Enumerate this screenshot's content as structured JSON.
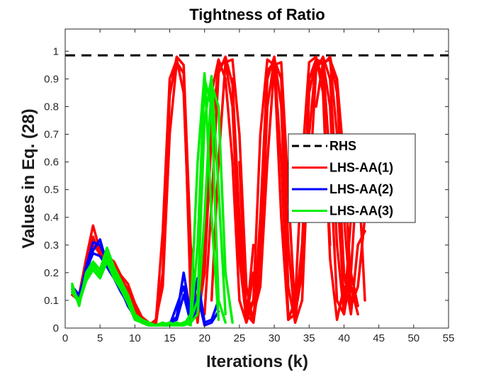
{
  "chart_data": {
    "type": "line",
    "title": "Tightness of Ratio",
    "xlabel": "Iterations (k)",
    "ylabel": "Values in Eq. (28)",
    "xlim": [
      0,
      55
    ],
    "ylim": [
      0,
      1.08
    ],
    "xticks": [
      0,
      5,
      10,
      15,
      20,
      25,
      30,
      35,
      40,
      45,
      50,
      55
    ],
    "xtick_labels": [
      "0",
      "5",
      "10",
      "15",
      "20",
      "25",
      "30",
      "35",
      "40",
      "45",
      "50",
      "55"
    ],
    "yticks": [
      0,
      0.1,
      0.2,
      0.3,
      0.4,
      0.5,
      0.6,
      0.7,
      0.8,
      0.9,
      1
    ],
    "ytick_labels": [
      "0",
      "0.1",
      "0.2",
      "0.3",
      "0.4",
      "0.5",
      "0.6",
      "0.7",
      "0.8",
      "0.9",
      "1"
    ],
    "legend_position": "right-middle",
    "series": [
      {
        "name": "RHS",
        "color": "#000000",
        "style": "dashed",
        "runs": [
          {
            "x": [
              0,
              55
            ],
            "y": [
              0.985,
              0.985
            ]
          }
        ]
      },
      {
        "name": "LHS-AA(1)",
        "color": "#ff0000",
        "style": "solid",
        "runs": [
          {
            "x": [
              1,
              2,
              3,
              4,
              5,
              6,
              7,
              8,
              9,
              10,
              11,
              12,
              13,
              14,
              15,
              16,
              17,
              18,
              19
            ],
            "y": [
              0.13,
              0.12,
              0.25,
              0.37,
              0.28,
              0.26,
              0.24,
              0.19,
              0.16,
              0.09,
              0.04,
              0.02,
              0.01,
              0.2,
              0.84,
              0.98,
              0.95,
              0.3,
              0.03
            ]
          },
          {
            "x": [
              1,
              2,
              3,
              4,
              5,
              6,
              7,
              8,
              9,
              10,
              11,
              12,
              13,
              14,
              15,
              16,
              17,
              18,
              19
            ],
            "y": [
              0.12,
              0.1,
              0.22,
              0.33,
              0.26,
              0.24,
              0.22,
              0.18,
              0.14,
              0.07,
              0.03,
              0.01,
              0.02,
              0.35,
              0.9,
              0.97,
              0.85,
              0.2,
              0.02
            ]
          },
          {
            "x": [
              1,
              2,
              3,
              4,
              5,
              6,
              7,
              8,
              9,
              10,
              11,
              12,
              13,
              14,
              15,
              16,
              17,
              18
            ],
            "y": [
              0.14,
              0.11,
              0.2,
              0.3,
              0.27,
              0.25,
              0.21,
              0.17,
              0.13,
              0.06,
              0.02,
              0.01,
              0.03,
              0.15,
              0.7,
              0.96,
              0.92,
              0.1
            ]
          },
          {
            "x": [
              19,
              20,
              21,
              22,
              23,
              24,
              25,
              26,
              27
            ],
            "y": [
              0.02,
              0.3,
              0.85,
              0.97,
              0.9,
              0.6,
              0.1,
              0.02,
              0.3
            ]
          },
          {
            "x": [
              19,
              20,
              21,
              22,
              23,
              24,
              25,
              26,
              27
            ],
            "y": [
              0.03,
              0.2,
              0.7,
              0.95,
              0.96,
              0.8,
              0.25,
              0.03,
              0.2
            ]
          },
          {
            "x": [
              20,
              21,
              22,
              23,
              24,
              25,
              26,
              27
            ],
            "y": [
              0.05,
              0.45,
              0.92,
              0.98,
              0.88,
              0.4,
              0.05,
              0.1
            ]
          },
          {
            "x": [
              21,
              22,
              23,
              24,
              25,
              26,
              27,
              28,
              29,
              30,
              31,
              32
            ],
            "y": [
              0.1,
              0.6,
              0.96,
              0.97,
              0.7,
              0.15,
              0.02,
              0.4,
              0.93,
              0.96,
              0.6,
              0.05
            ]
          },
          {
            "x": [
              24,
              25,
              26,
              27,
              28,
              29,
              30,
              31,
              32,
              33
            ],
            "y": [
              0.9,
              0.3,
              0.02,
              0.1,
              0.7,
              0.97,
              0.95,
              0.4,
              0.03,
              0.05
            ]
          },
          {
            "x": [
              25,
              26,
              27,
              28,
              29,
              30,
              31,
              32,
              33,
              34
            ],
            "y": [
              0.6,
              0.05,
              0.02,
              0.3,
              0.9,
              0.98,
              0.8,
              0.15,
              0.02,
              0.3
            ]
          },
          {
            "x": [
              26,
              27,
              28,
              29,
              30,
              31,
              32,
              33,
              34
            ],
            "y": [
              0.1,
              0.02,
              0.2,
              0.8,
              0.97,
              0.9,
              0.3,
              0.02,
              0.1
            ]
          },
          {
            "x": [
              27,
              28,
              29,
              30,
              31,
              32,
              33,
              34,
              35,
              36,
              37,
              38
            ],
            "y": [
              0.05,
              0.15,
              0.6,
              0.95,
              0.96,
              0.5,
              0.05,
              0.2,
              0.85,
              0.97,
              0.9,
              0.3
            ]
          },
          {
            "x": [
              32,
              33,
              34,
              35,
              36,
              37,
              38,
              39,
              40
            ],
            "y": [
              0.03,
              0.1,
              0.6,
              0.96,
              0.98,
              0.85,
              0.25,
              0.03,
              0.15
            ]
          },
          {
            "x": [
              33,
              34,
              35,
              36,
              37,
              38,
              39,
              40,
              41
            ],
            "y": [
              0.05,
              0.3,
              0.9,
              0.97,
              0.95,
              0.6,
              0.1,
              0.05,
              0.4
            ]
          },
          {
            "x": [
              34,
              35,
              36,
              37,
              38,
              39,
              40,
              41,
              42
            ],
            "y": [
              0.1,
              0.7,
              0.97,
              0.96,
              0.8,
              0.3,
              0.05,
              0.2,
              0.08
            ]
          },
          {
            "x": [
              35,
              36,
              37,
              38,
              39,
              40,
              41,
              42,
              43
            ],
            "y": [
              0.5,
              0.93,
              0.98,
              0.9,
              0.5,
              0.1,
              0.2,
              0.6,
              0.1
            ]
          },
          {
            "x": [
              36,
              37,
              38,
              39,
              40,
              41,
              42,
              43
            ],
            "y": [
              0.8,
              0.96,
              0.97,
              0.7,
              0.2,
              0.05,
              0.3,
              0.35
            ]
          },
          {
            "x": [
              37,
              38,
              39,
              40,
              41,
              42,
              43
            ],
            "y": [
              0.95,
              0.98,
              0.85,
              0.4,
              0.08,
              0.15,
              0.4
            ]
          },
          {
            "x": [
              38,
              39,
              40,
              41,
              42
            ],
            "y": [
              0.97,
              0.9,
              0.6,
              0.15,
              0.05
            ]
          }
        ]
      },
      {
        "name": "LHS-AA(2)",
        "color": "#0000ff",
        "style": "solid",
        "runs": [
          {
            "x": [
              1,
              2,
              3,
              4,
              5,
              6,
              7,
              8,
              9,
              10,
              11,
              12,
              13,
              14,
              15,
              16,
              17,
              18,
              19,
              20,
              21,
              22
            ],
            "y": [
              0.14,
              0.11,
              0.22,
              0.31,
              0.3,
              0.24,
              0.2,
              0.15,
              0.1,
              0.05,
              0.02,
              0.01,
              0.01,
              0.01,
              0.02,
              0.04,
              0.2,
              0.05,
              0.18,
              0.02,
              0.03,
              0.1
            ]
          },
          {
            "x": [
              1,
              2,
              3,
              4,
              5,
              6,
              7,
              8,
              9,
              10,
              11,
              12,
              13,
              14,
              15,
              16,
              17,
              18,
              19,
              20,
              21,
              22
            ],
            "y": [
              0.13,
              0.1,
              0.2,
              0.28,
              0.32,
              0.23,
              0.19,
              0.14,
              0.08,
              0.04,
              0.02,
              0.01,
              0.01,
              0.01,
              0.01,
              0.08,
              0.15,
              0.03,
              0.12,
              0.01,
              0.02,
              0.06
            ]
          },
          {
            "x": [
              1,
              2,
              3,
              4,
              5,
              6,
              7,
              8,
              9,
              10,
              11,
              12,
              13,
              14,
              15,
              16,
              17,
              18,
              19
            ],
            "y": [
              0.15,
              0.12,
              0.21,
              0.27,
              0.26,
              0.22,
              0.18,
              0.13,
              0.09,
              0.05,
              0.03,
              0.01,
              0.01,
              0.01,
              0.02,
              0.03,
              0.12,
              0.02,
              0.08
            ]
          }
        ]
      },
      {
        "name": "LHS-AA(3)",
        "color": "#00ee00",
        "style": "solid",
        "runs": [
          {
            "x": [
              1,
              2,
              3,
              4,
              5,
              6,
              7,
              8,
              9,
              10,
              11,
              12,
              13,
              14,
              15,
              16,
              17,
              18,
              19,
              20,
              21,
              22,
              23
            ],
            "y": [
              0.16,
              0.08,
              0.2,
              0.24,
              0.21,
              0.29,
              0.22,
              0.17,
              0.12,
              0.05,
              0.03,
              0.02,
              0.01,
              0.01,
              0.02,
              0.01,
              0.02,
              0.01,
              0.3,
              0.9,
              0.8,
              0.1,
              0.02
            ]
          },
          {
            "x": [
              1,
              2,
              3,
              4,
              5,
              6,
              7,
              8,
              9,
              10,
              11,
              12,
              13,
              14,
              15,
              16,
              17,
              18,
              19,
              20,
              21,
              22
            ],
            "y": [
              0.15,
              0.09,
              0.19,
              0.22,
              0.2,
              0.27,
              0.2,
              0.16,
              0.11,
              0.04,
              0.02,
              0.01,
              0.01,
              0.02,
              0.01,
              0.02,
              0.01,
              0.05,
              0.6,
              0.92,
              0.4,
              0.03
            ]
          },
          {
            "x": [
              1,
              2,
              3,
              4,
              5,
              6,
              7,
              8,
              9,
              10,
              11,
              12,
              13,
              14,
              15,
              16,
              17,
              18,
              19,
              20,
              21,
              22,
              23
            ],
            "y": [
              0.14,
              0.1,
              0.18,
              0.23,
              0.19,
              0.25,
              0.19,
              0.15,
              0.1,
              0.04,
              0.02,
              0.01,
              0.01,
              0.01,
              0.01,
              0.01,
              0.02,
              0.03,
              0.1,
              0.75,
              0.91,
              0.5,
              0.05
            ]
          },
          {
            "x": [
              1,
              2,
              3,
              4,
              5,
              6,
              7,
              8,
              9,
              10,
              11,
              12,
              13,
              14,
              15,
              16,
              17,
              18,
              19,
              20,
              21,
              22,
              23,
              24
            ],
            "y": [
              0.13,
              0.09,
              0.17,
              0.21,
              0.18,
              0.24,
              0.18,
              0.14,
              0.09,
              0.03,
              0.02,
              0.01,
              0.01,
              0.01,
              0.02,
              0.01,
              0.01,
              0.02,
              0.05,
              0.4,
              0.88,
              0.8,
              0.2,
              0.02
            ]
          }
        ]
      }
    ]
  }
}
